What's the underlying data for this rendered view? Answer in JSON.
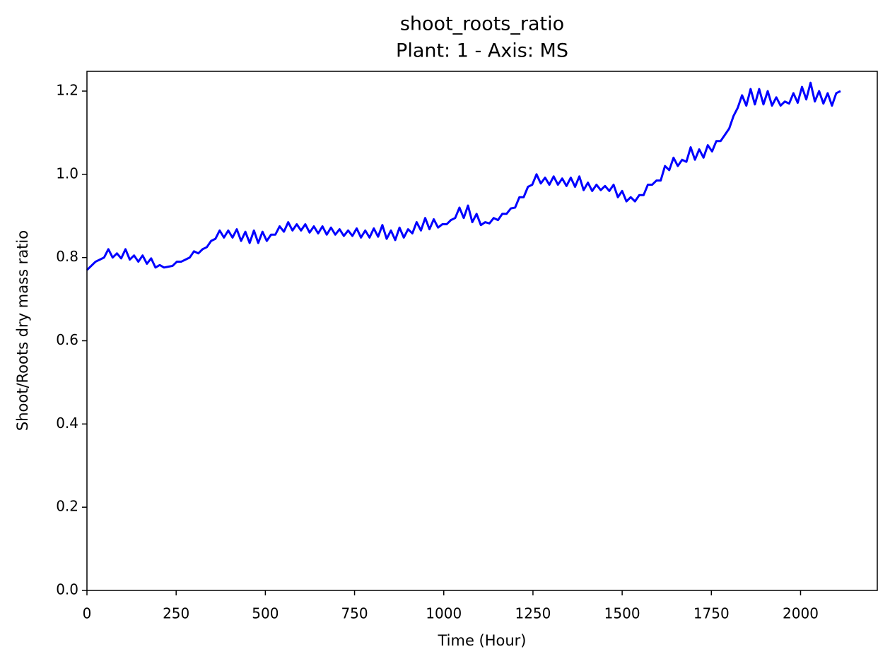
{
  "chart_data": {
    "type": "line",
    "title": "shoot_roots_ratio",
    "subtitle": "Plant: 1 - Axis: MS",
    "x_label": "Time (Hour)",
    "y_label": "Shoot/Roots dry mass ratio",
    "xlim": [
      0,
      2215
    ],
    "xticks": [
      0,
      250,
      500,
      750,
      1000,
      1250,
      1500,
      1750,
      2000
    ],
    "ylim": [
      0,
      1.2475
    ],
    "yticks": [
      {
        "value": 0,
        "label": "0.0"
      },
      0.2,
      0.4,
      0.6,
      0.8,
      {
        "value": 1,
        "label": "1.0"
      },
      1.2
    ],
    "grid": false,
    "x": [
      0,
      12,
      24,
      36,
      48,
      60,
      72,
      84,
      96,
      108,
      120,
      132,
      144,
      156,
      168,
      180,
      192,
      204,
      216,
      228,
      240,
      252,
      264,
      276,
      288,
      300,
      312,
      324,
      336,
      348,
      360,
      372,
      384,
      396,
      408,
      420,
      432,
      444,
      456,
      468,
      480,
      492,
      504,
      516,
      528,
      540,
      552,
      564,
      576,
      588,
      600,
      612,
      624,
      636,
      648,
      660,
      672,
      684,
      696,
      708,
      720,
      732,
      744,
      756,
      768,
      780,
      792,
      804,
      816,
      828,
      840,
      852,
      864,
      876,
      888,
      900,
      912,
      924,
      936,
      948,
      960,
      972,
      984,
      996,
      1008,
      1020,
      1032,
      1044,
      1056,
      1068,
      1080,
      1092,
      1104,
      1116,
      1128,
      1140,
      1152,
      1164,
      1176,
      1188,
      1200,
      1212,
      1224,
      1236,
      1248,
      1260,
      1272,
      1284,
      1296,
      1308,
      1320,
      1332,
      1344,
      1356,
      1368,
      1380,
      1392,
      1404,
      1416,
      1428,
      1440,
      1452,
      1464,
      1476,
      1488,
      1500,
      1512,
      1524,
      1536,
      1548,
      1560,
      1572,
      1584,
      1596,
      1608,
      1620,
      1632,
      1644,
      1656,
      1668,
      1680,
      1692,
      1704,
      1716,
      1728,
      1740,
      1752,
      1764,
      1776,
      1788,
      1800,
      1812,
      1824,
      1836,
      1848,
      1860,
      1872,
      1884,
      1896,
      1908,
      1920,
      1932,
      1944,
      1956,
      1968,
      1980,
      1992,
      2004,
      2016,
      2028,
      2040,
      2052,
      2064,
      2076,
      2088,
      2100,
      2112
    ],
    "series": [
      {
        "name": "shoot_roots_ratio",
        "color": "#0000ff",
        "values": [
          0.77,
          0.78,
          0.79,
          0.795,
          0.8,
          0.82,
          0.8,
          0.81,
          0.798,
          0.82,
          0.795,
          0.805,
          0.79,
          0.805,
          0.785,
          0.798,
          0.776,
          0.782,
          0.776,
          0.778,
          0.78,
          0.79,
          0.79,
          0.795,
          0.8,
          0.815,
          0.81,
          0.82,
          0.825,
          0.84,
          0.845,
          0.865,
          0.848,
          0.865,
          0.848,
          0.868,
          0.84,
          0.862,
          0.835,
          0.865,
          0.835,
          0.862,
          0.84,
          0.855,
          0.855,
          0.875,
          0.862,
          0.885,
          0.865,
          0.88,
          0.865,
          0.88,
          0.86,
          0.875,
          0.858,
          0.875,
          0.855,
          0.872,
          0.855,
          0.868,
          0.852,
          0.865,
          0.852,
          0.87,
          0.848,
          0.865,
          0.848,
          0.87,
          0.85,
          0.878,
          0.845,
          0.865,
          0.842,
          0.872,
          0.848,
          0.868,
          0.858,
          0.885,
          0.865,
          0.895,
          0.868,
          0.892,
          0.872,
          0.88,
          0.88,
          0.89,
          0.895,
          0.92,
          0.895,
          0.925,
          0.885,
          0.905,
          0.878,
          0.885,
          0.882,
          0.895,
          0.89,
          0.905,
          0.905,
          0.918,
          0.92,
          0.945,
          0.945,
          0.97,
          0.975,
          1.0,
          0.978,
          0.992,
          0.975,
          0.995,
          0.975,
          0.99,
          0.972,
          0.992,
          0.97,
          0.995,
          0.962,
          0.98,
          0.96,
          0.975,
          0.962,
          0.972,
          0.96,
          0.975,
          0.945,
          0.96,
          0.935,
          0.945,
          0.935,
          0.95,
          0.95,
          0.975,
          0.975,
          0.985,
          0.985,
          1.02,
          1.01,
          1.04,
          1.02,
          1.035,
          1.03,
          1.065,
          1.035,
          1.06,
          1.04,
          1.07,
          1.055,
          1.08,
          1.08,
          1.095,
          1.11,
          1.14,
          1.16,
          1.19,
          1.165,
          1.205,
          1.168,
          1.205,
          1.168,
          1.2,
          1.165,
          1.185,
          1.165,
          1.175,
          1.17,
          1.195,
          1.172,
          1.21,
          1.18,
          1.22,
          1.175,
          1.2,
          1.17,
          1.195,
          1.165,
          1.195,
          1.2
        ]
      }
    ]
  }
}
